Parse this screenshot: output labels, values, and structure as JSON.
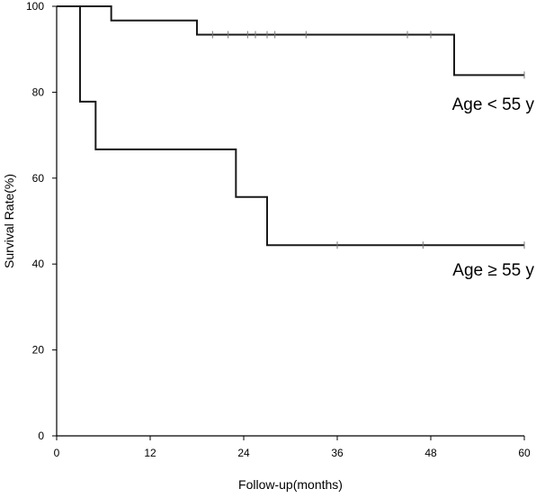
{
  "chart_data": {
    "type": "line",
    "step": true,
    "xlabel": "Follow-up(months)",
    "ylabel": "Survival Rate(%)",
    "xlim": [
      0,
      60
    ],
    "ylim": [
      0,
      100
    ],
    "xticks": [
      0,
      12,
      24,
      36,
      48,
      60
    ],
    "yticks": [
      0,
      20,
      40,
      60,
      80,
      100
    ],
    "grid": false,
    "series": [
      {
        "name": "Age < 55 y",
        "color": "#1a1a1a",
        "x": [
          0,
          7,
          18,
          51,
          60
        ],
        "y": [
          100,
          96.7,
          93.4,
          84.0,
          84.0
        ],
        "censored": [
          {
            "x": 20,
            "y": 93.4
          },
          {
            "x": 22,
            "y": 93.4
          },
          {
            "x": 24.5,
            "y": 93.4
          },
          {
            "x": 25.5,
            "y": 93.4
          },
          {
            "x": 27,
            "y": 93.4
          },
          {
            "x": 28,
            "y": 93.4
          },
          {
            "x": 32,
            "y": 93.4
          },
          {
            "x": 45,
            "y": 93.4
          },
          {
            "x": 48,
            "y": 93.4
          },
          {
            "x": 60,
            "y": 84.0
          }
        ]
      },
      {
        "name": "Age ≥ 55 y",
        "color": "#1a1a1a",
        "x": [
          0,
          3,
          5,
          23,
          27,
          60
        ],
        "y": [
          100,
          77.8,
          66.7,
          55.6,
          44.4,
          44.4
        ],
        "censored": [
          {
            "x": 36,
            "y": 44.4
          },
          {
            "x": 47,
            "y": 44.4
          },
          {
            "x": 60,
            "y": 44.4
          }
        ]
      }
    ]
  }
}
